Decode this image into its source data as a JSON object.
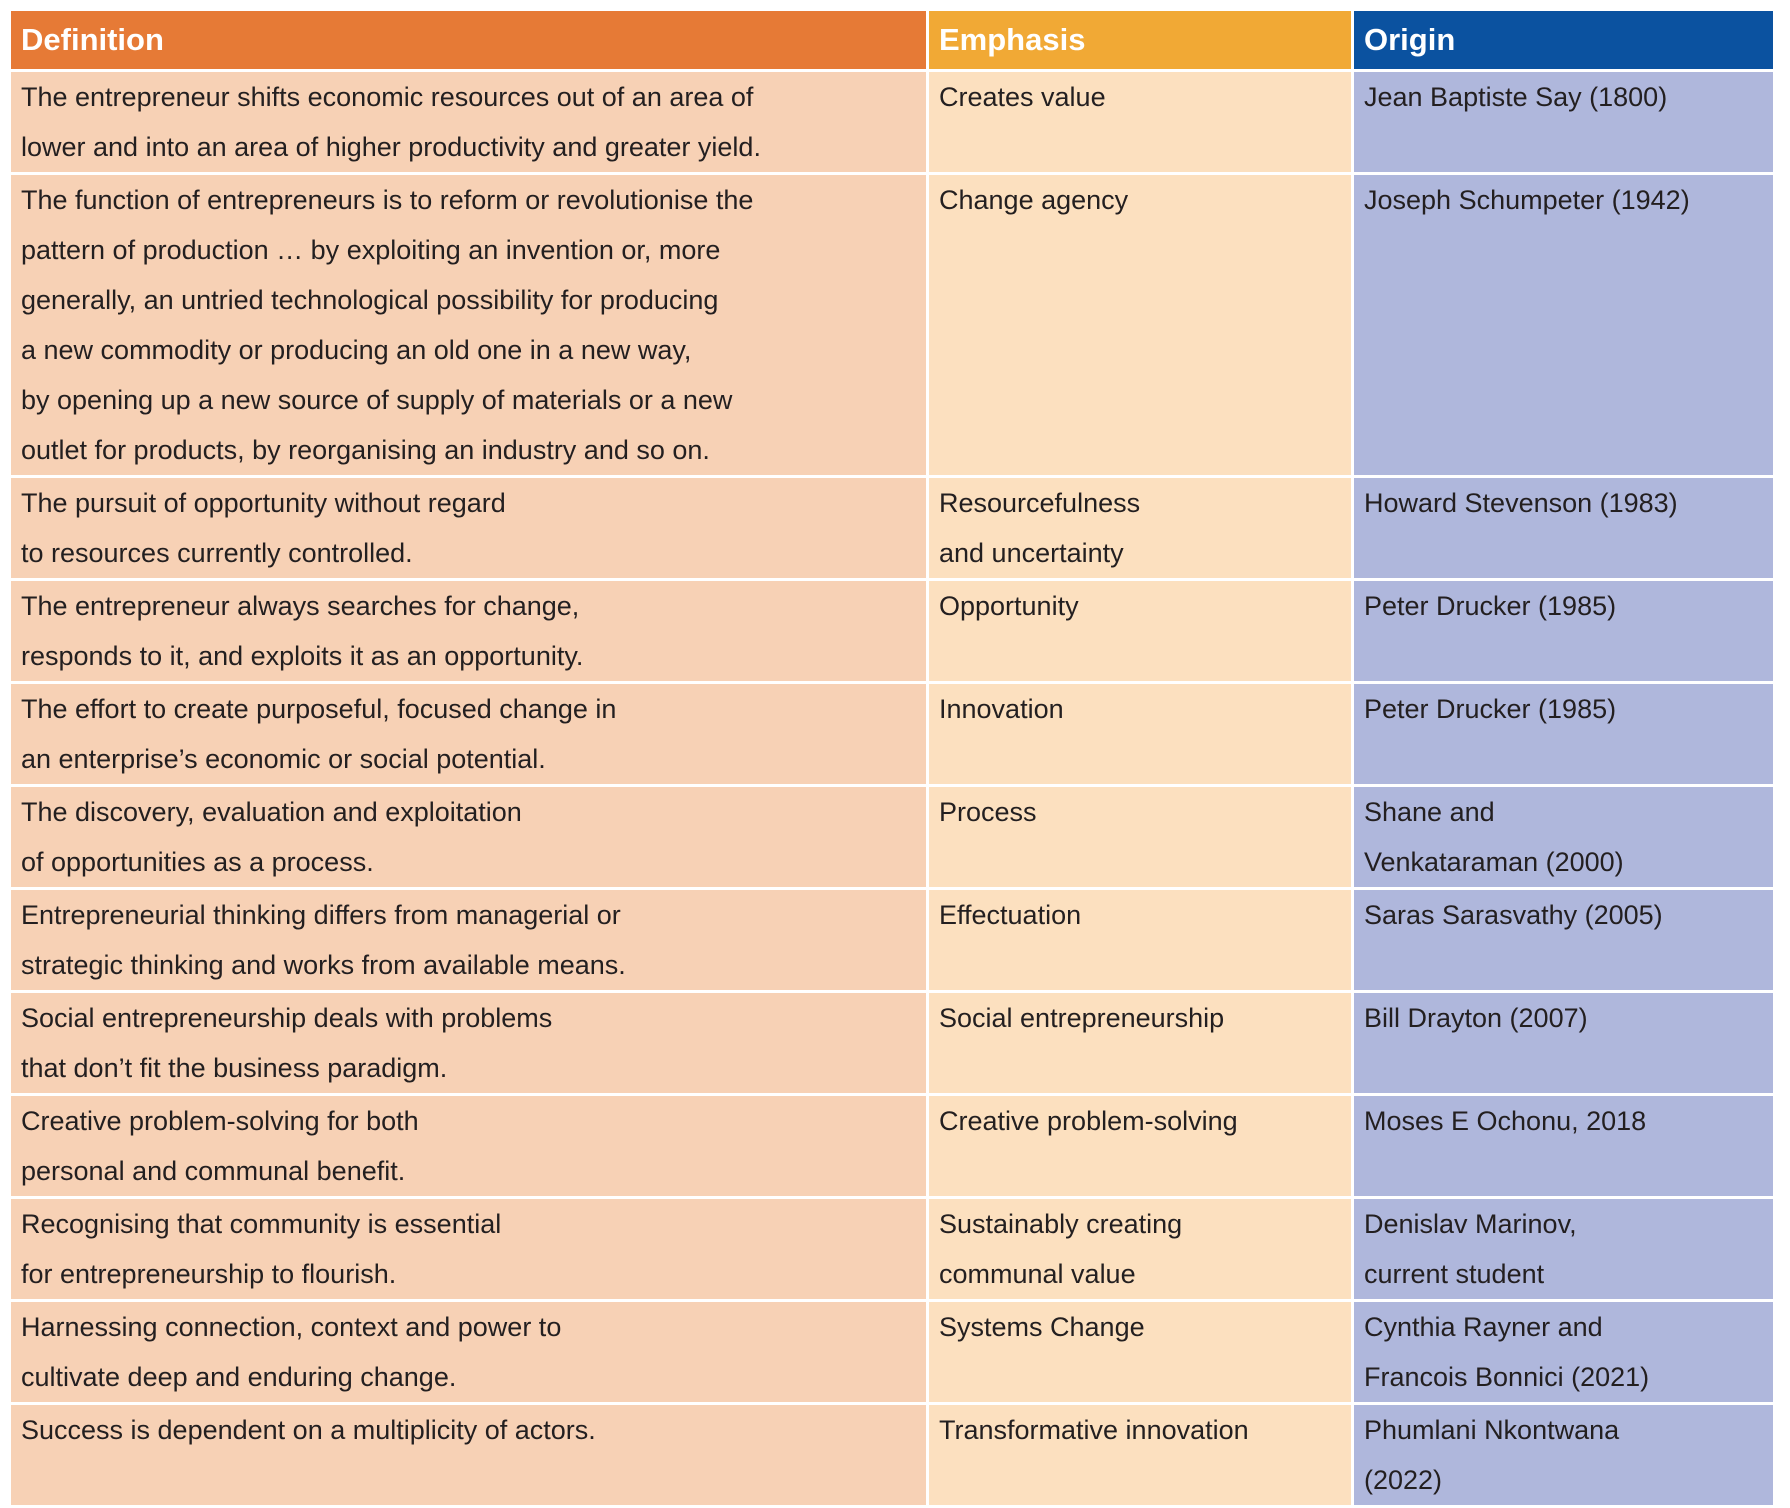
{
  "headers": {
    "definition": "Definition",
    "emphasis": "Emphasis",
    "origin": "Origin"
  },
  "colors": {
    "definition_header": "#E67A36",
    "emphasis_header": "#F1A935",
    "origin_header": "#0B52A0",
    "definition_cell": "#F7D1B5",
    "emphasis_cell": "#FCE0BF",
    "origin_cell": "#AFB7DC"
  },
  "rows": [
    {
      "definition": "The entrepreneur shifts economic resources out of an area of\nlower and into an area of higher productivity and greater yield.",
      "emphasis": "Creates value",
      "origin": "Jean Baptiste Say (1800)"
    },
    {
      "definition": "The function of entrepreneurs is to reform or revolutionise the\npattern of production … by exploiting an invention or, more\ngenerally, an untried technological possibility for producing\na new commodity or producing an old one in a new way,\nby opening up a new source of supply of materials or a new\noutlet for products, by reorganising an industry and so on.",
      "emphasis": "Change agency",
      "origin": "Joseph Schumpeter (1942)"
    },
    {
      "definition": "The pursuit of opportunity without regard\nto resources currently controlled.",
      "emphasis": "Resourcefulness\nand uncertainty",
      "origin": "Howard Stevenson (1983)"
    },
    {
      "definition": "The entrepreneur always searches for change,\nresponds to it, and exploits it as an opportunity.",
      "emphasis": "Opportunity",
      "origin": "Peter Drucker (1985)"
    },
    {
      "definition": "The effort to create purposeful, focused change in\nan enterprise’s economic or social potential.",
      "emphasis": "Innovation",
      "origin": "Peter Drucker (1985)"
    },
    {
      "definition": "The discovery, evaluation and exploitation\nof opportunities as a process.",
      "emphasis": "Process",
      "origin": "Shane and\nVenkataraman (2000)"
    },
    {
      "definition": "Entrepreneurial thinking differs from managerial or\nstrategic thinking and works from available means.",
      "emphasis": "Effectuation",
      "origin": "Saras Sarasvathy (2005)"
    },
    {
      "definition": "Social entrepreneurship deals with problems\nthat don’t fit the business paradigm.",
      "emphasis": "Social entrepreneurship",
      "origin": "Bill Drayton (2007)"
    },
    {
      "definition": "Creative problem-solving for both\npersonal and communal benefit.",
      "emphasis": "Creative problem-solving",
      "origin": "Moses E Ochonu, 2018"
    },
    {
      "definition": "Recognising that community is essential\nfor entrepreneurship to flourish.",
      "emphasis": "Sustainably creating\ncommunal value",
      "origin": "Denislav Marinov,\ncurrent student"
    },
    {
      "definition": "Harnessing connection, context and power to\ncultivate deep and enduring change.",
      "emphasis": "Systems Change",
      "origin": "Cynthia Rayner and\nFrancois Bonnici (2021)"
    },
    {
      "definition": "Success is dependent on a multiplicity of actors.",
      "emphasis": "Transformative innovation",
      "origin": "Phumlani Nkontwana\n(2022)"
    }
  ]
}
